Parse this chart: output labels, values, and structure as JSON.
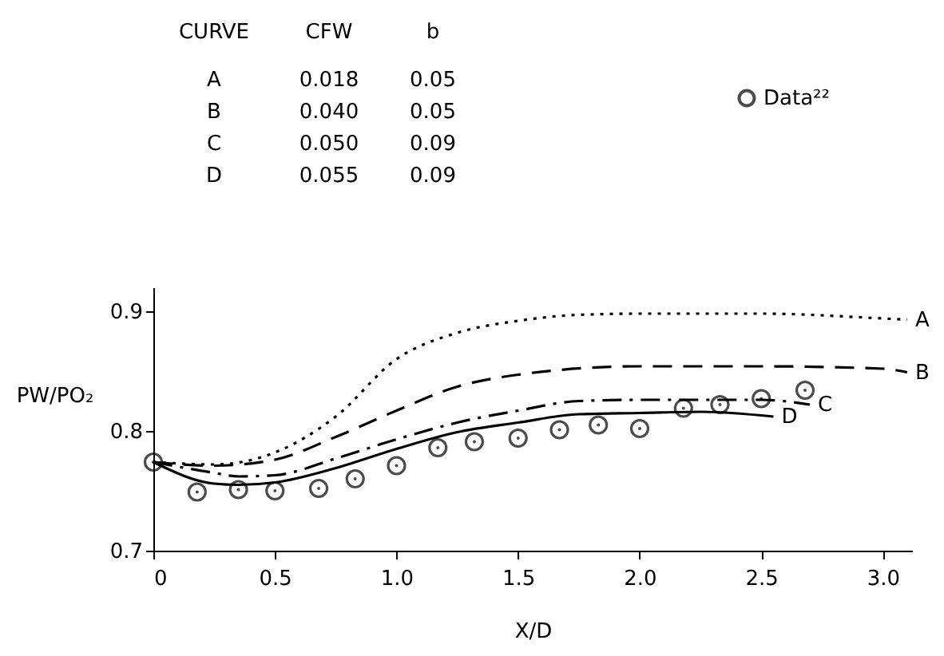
{
  "chart_data": {
    "type": "line",
    "xlabel": "X/D",
    "ylabel": "PW/PO₂",
    "xlim": [
      0,
      3.12
    ],
    "ylim": [
      0.7,
      0.92
    ],
    "xticks": [
      0,
      0.5,
      {
        "value": 1,
        "label": "1.0"
      },
      1.5,
      {
        "value": 2,
        "label": "2.0"
      },
      2.5,
      {
        "value": 3,
        "label": "3.0"
      }
    ],
    "yticks": [
      0.7,
      0.8,
      0.9
    ],
    "grid": false,
    "legend": "top right",
    "annotations": [
      "CURVE  CFW  b",
      "A  0.018  0.05",
      "B  0.040  0.05",
      "C  0.050  0.09",
      "D  0.055  0.09"
    ],
    "series": [
      {
        "name": "A",
        "line_style": "dotted",
        "color": "#000000",
        "x": [
          0,
          0.25,
          0.5,
          0.75,
          1.0,
          1.25,
          1.5,
          1.75,
          2.0,
          2.5,
          3.0,
          3.1
        ],
        "values": [
          0.774,
          0.772,
          0.782,
          0.812,
          0.86,
          0.882,
          0.892,
          0.897,
          0.898,
          0.898,
          0.894,
          0.893
        ]
      },
      {
        "name": "B",
        "line_style": "dashed",
        "color": "#000000",
        "x": [
          0,
          0.25,
          0.5,
          0.75,
          1.0,
          1.25,
          1.5,
          2.0,
          2.5,
          3.0,
          3.1
        ],
        "values": [
          0.774,
          0.771,
          0.776,
          0.795,
          0.817,
          0.837,
          0.847,
          0.854,
          0.854,
          0.852,
          0.849
        ]
      },
      {
        "name": "C",
        "line_style": "dashdot",
        "color": "#000000",
        "x": [
          0,
          0.25,
          0.35,
          0.5,
          0.75,
          1.0,
          1.25,
          1.5,
          1.75,
          2.0,
          2.5,
          2.7
        ],
        "values": [
          0.774,
          0.765,
          0.762,
          0.763,
          0.777,
          0.793,
          0.807,
          0.817,
          0.825,
          0.826,
          0.826,
          0.822
        ]
      },
      {
        "name": "D",
        "line_style": "solid",
        "color": "#000000",
        "x": [
          0,
          0.25,
          0.35,
          0.5,
          0.75,
          1.0,
          1.25,
          1.5,
          1.75,
          2.0,
          2.25,
          2.55
        ],
        "values": [
          0.774,
          0.756,
          0.755,
          0.757,
          0.769,
          0.785,
          0.799,
          0.807,
          0.814,
          0.815,
          0.816,
          0.812
        ]
      },
      {
        "name": "Data²²",
        "type": "scatter",
        "marker": "circle",
        "color": "#000000",
        "x": [
          0,
          0.18,
          0.35,
          0.5,
          0.68,
          0.83,
          1.0,
          1.17,
          1.32,
          1.5,
          1.67,
          1.83,
          2.0,
          2.18,
          2.33,
          2.5,
          2.68
        ],
        "values": [
          0.774,
          0.749,
          0.751,
          0.75,
          0.752,
          0.76,
          0.771,
          0.786,
          0.791,
          0.794,
          0.801,
          0.805,
          0.802,
          0.819,
          0.822,
          0.827,
          0.834
        ]
      }
    ]
  }
}
